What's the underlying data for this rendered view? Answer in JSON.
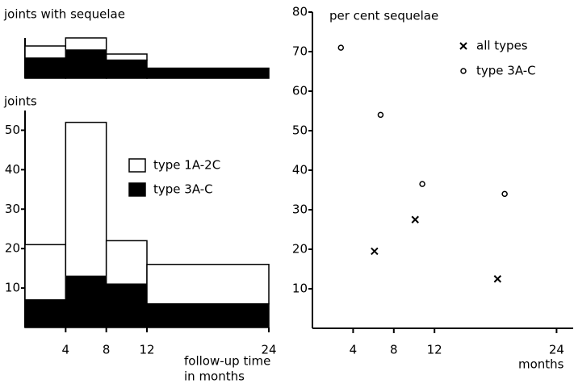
{
  "chart_data": [
    {
      "type": "histogram",
      "title": "joints with sequelae",
      "bins": [
        0,
        4,
        8,
        12,
        24
      ],
      "xlim": [
        0,
        24
      ],
      "ylim": [
        0,
        10
      ],
      "series": [
        {
          "color": "#000000",
          "values": [
            5,
            7,
            4.5,
            2.5
          ]
        },
        {
          "color": "#ffffff",
          "values": [
            3,
            3,
            1.5,
            0
          ]
        }
      ]
    },
    {
      "type": "histogram",
      "ylabel": "joints",
      "xlabel": [
        "follow-up time",
        "in months"
      ],
      "bins": [
        0,
        4,
        8,
        12,
        24
      ],
      "xlim": [
        0,
        24
      ],
      "ylim": [
        0,
        55
      ],
      "xticks": [
        4,
        8,
        12,
        24
      ],
      "yticks": [
        10,
        20,
        30,
        40,
        50
      ],
      "series": [
        {
          "name": "type 3A-C",
          "color": "#000000",
          "values": [
            7,
            13,
            11,
            6
          ]
        },
        {
          "name": "type 1A-2C",
          "color": "#ffffff",
          "values": [
            14,
            39,
            11,
            10
          ]
        }
      ]
    },
    {
      "type": "scatter",
      "ylabel": "per cent sequelae",
      "xlabel": "months",
      "xlim": [
        0,
        25
      ],
      "ylim": [
        0,
        80
      ],
      "xticks": [
        4,
        8,
        12,
        24
      ],
      "yticks": [
        10,
        20,
        30,
        40,
        50,
        60,
        70,
        80
      ],
      "series": [
        {
          "name": "all types",
          "marker": "x",
          "x": [
            6.1,
            10.1,
            18.2
          ],
          "values": [
            19.5,
            27.5,
            12.5
          ]
        },
        {
          "name": "type 3A-C",
          "marker": "o",
          "x": [
            2.8,
            6.7,
            10.8,
            18.9
          ],
          "values": [
            71,
            54,
            36.5,
            34
          ]
        }
      ]
    }
  ]
}
